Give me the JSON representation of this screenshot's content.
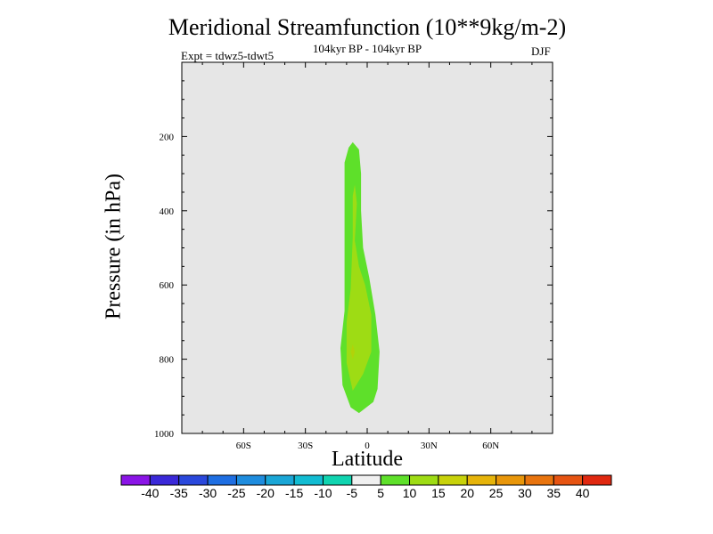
{
  "chart_data": {
    "type": "contour",
    "title": "Meridional Streamfunction (10**9kg/m-2)",
    "subtitle": "104kyr BP - 104kyr BP",
    "left_label": "Expt = tdwz5-tdwt5",
    "right_label": "DJF",
    "xlabel": "Latitude",
    "ylabel": "Pressure (in hPa)",
    "xlim": [
      -90,
      90
    ],
    "ylim": [
      1000,
      0
    ],
    "x_ticks": [
      {
        "value": -60,
        "label": "60S"
      },
      {
        "value": -30,
        "label": "30S"
      },
      {
        "value": 0,
        "label": "0"
      },
      {
        "value": 30,
        "label": "30N"
      },
      {
        "value": 60,
        "label": "60N"
      }
    ],
    "y_ticks": [
      {
        "value": 200,
        "label": "200"
      },
      {
        "value": 400,
        "label": "400"
      },
      {
        "value": 600,
        "label": "600"
      },
      {
        "value": 800,
        "label": "800"
      },
      {
        "value": 1000,
        "label": "1000"
      }
    ],
    "background_color": "#e6e6e6",
    "contour_regions": [
      {
        "level": "5 to 10",
        "color": "#5ee02a",
        "polygon": [
          [
            -7,
            215
          ],
          [
            -4,
            235
          ],
          [
            -3,
            300
          ],
          [
            -3,
            400
          ],
          [
            -2,
            500
          ],
          [
            1,
            580
          ],
          [
            4,
            680
          ],
          [
            6,
            780
          ],
          [
            5,
            880
          ],
          [
            3,
            915
          ],
          [
            -4,
            945
          ],
          [
            -8,
            930
          ],
          [
            -12,
            870
          ],
          [
            -13,
            770
          ],
          [
            -11,
            670
          ],
          [
            -11,
            560
          ],
          [
            -11,
            460
          ],
          [
            -11,
            360
          ],
          [
            -11,
            270
          ],
          [
            -9,
            230
          ]
        ]
      },
      {
        "level": "10 to 15",
        "color": "#9edc14",
        "polygon": [
          [
            -6,
            330
          ],
          [
            -5,
            380
          ],
          [
            -6,
            480
          ],
          [
            -4,
            550
          ],
          [
            -1,
            600
          ],
          [
            2,
            680
          ],
          [
            2,
            780
          ],
          [
            -2,
            840
          ],
          [
            -7,
            885
          ],
          [
            -10,
            810
          ],
          [
            -10,
            700
          ],
          [
            -8,
            610
          ],
          [
            -7,
            470
          ],
          [
            -7,
            360
          ]
        ]
      },
      {
        "level": "15 to 20",
        "color": "#b2d20a",
        "polygon": [
          [
            -7,
            760
          ],
          [
            -6,
            780
          ],
          [
            -7,
            800
          ],
          [
            -8,
            780
          ]
        ]
      }
    ],
    "colorbar": {
      "labels": [
        "-40",
        "-35",
        "-30",
        "-25",
        "-20",
        "-15",
        "-10",
        "-5",
        "5",
        "10",
        "15",
        "20",
        "25",
        "30",
        "35",
        "40"
      ],
      "colors": [
        "#8a14e6",
        "#3a28d8",
        "#2a48dc",
        "#1e6ee2",
        "#1e8cde",
        "#1aa6d6",
        "#12bcd2",
        "#10d4b0",
        "#f0f0f0",
        "#5ee02a",
        "#9edc14",
        "#c8d20a",
        "#e6b40a",
        "#e8960a",
        "#e8740e",
        "#e65412",
        "#e02810"
      ]
    }
  }
}
